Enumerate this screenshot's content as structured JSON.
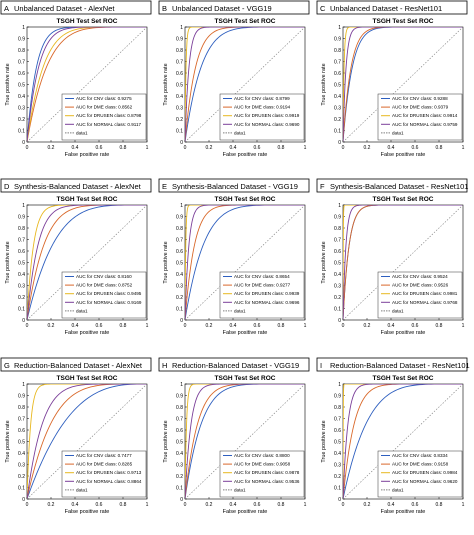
{
  "colors": {
    "CNV": "#2e5fbf",
    "DME": "#d9682a",
    "DRUSEN": "#e8b820",
    "NORMAL": "#7b3f99",
    "data1": "#7f7f7f"
  },
  "chart_data": [
    {
      "type": "line",
      "letter": "A",
      "panel_title": "Unbalanced Dataset - AlexNet",
      "title": "TSGH Test Set ROC",
      "xlabel": "False positive rate",
      "ylabel": "True positive rate",
      "xlim": [
        0,
        1
      ],
      "ylim": [
        0,
        1
      ],
      "xticks": [
        "0",
        "0.2",
        "0.4",
        "0.6",
        "0.8",
        "1"
      ],
      "yticks": [
        "0",
        "0.1",
        "0.2",
        "0.3",
        "0.4",
        "0.5",
        "0.6",
        "0.7",
        "0.8",
        "0.9",
        "1"
      ],
      "legend_position": "bottom-right",
      "series": [
        {
          "key": "CNV",
          "name": "AUC for CNV class: 0.9275",
          "auc": 0.9275
        },
        {
          "key": "DME",
          "name": "AUC for DME class: 0.8562",
          "auc": 0.8562
        },
        {
          "key": "DRUSEN",
          "name": "AUC for DRUSEN class: 0.8798",
          "auc": 0.8798
        },
        {
          "key": "NORMAL",
          "name": "AUC for NORMAL class: 0.9117",
          "auc": 0.9117
        },
        {
          "key": "data1",
          "name": "data1",
          "diagonal": true
        }
      ]
    },
    {
      "type": "line",
      "letter": "B",
      "panel_title": "Unbalanced Dataset - VGG19",
      "title": "TSGH Test Set ROC",
      "xlabel": "False positive rate",
      "ylabel": "True positive rate",
      "xlim": [
        0,
        1
      ],
      "ylim": [
        0,
        1
      ],
      "xticks": [
        "0",
        "0.2",
        "0.4",
        "0.6",
        "0.8",
        "1"
      ],
      "yticks": [
        "0",
        "0.1",
        "0.2",
        "0.3",
        "0.4",
        "0.5",
        "0.6",
        "0.7",
        "0.8",
        "0.9",
        "1"
      ],
      "legend_position": "bottom-right",
      "series": [
        {
          "key": "CNV",
          "name": "AUC for CNV class: 0.8799",
          "auc": 0.8799
        },
        {
          "key": "DME",
          "name": "AUC for DME class: 0.9194",
          "auc": 0.9194
        },
        {
          "key": "DRUSEN",
          "name": "AUC for DRUSEN class: 0.9919",
          "auc": 0.9919
        },
        {
          "key": "NORMAL",
          "name": "AUC for NORMAL class: 0.9690",
          "auc": 0.969
        },
        {
          "key": "data1",
          "name": "data1",
          "diagonal": true
        }
      ]
    },
    {
      "type": "line",
      "letter": "C",
      "panel_title": "Unbalanced Dataset - ResNet101",
      "title": "TSGH Test Set ROC",
      "xlabel": "False positive rate",
      "ylabel": "True positive rate",
      "xlim": [
        0,
        1
      ],
      "ylim": [
        0,
        1
      ],
      "xticks": [
        "0",
        "0.2",
        "0.4",
        "0.6",
        "0.8",
        "1"
      ],
      "yticks": [
        "0",
        "0.1",
        "0.2",
        "0.3",
        "0.4",
        "0.5",
        "0.6",
        "0.7",
        "0.8",
        "0.9",
        "1"
      ],
      "legend_position": "bottom-right",
      "series": [
        {
          "key": "CNV",
          "name": "AUC for CNV class: 0.9288",
          "auc": 0.9288
        },
        {
          "key": "DME",
          "name": "AUC for DME class: 0.9379",
          "auc": 0.9379
        },
        {
          "key": "DRUSEN",
          "name": "AUC for DRUSEN class: 0.9914",
          "auc": 0.9914
        },
        {
          "key": "NORMAL",
          "name": "AUC for NORMAL class: 0.9759",
          "auc": 0.9759
        },
        {
          "key": "data1",
          "name": "data1",
          "diagonal": true
        }
      ]
    },
    {
      "type": "line",
      "letter": "D",
      "panel_title": "Synthesis-Balanced Dataset - AlexNet",
      "title": "TSGH Test Set ROC",
      "xlabel": "False positive rate",
      "ylabel": "True positive rate",
      "xlim": [
        0,
        1
      ],
      "ylim": [
        0,
        1
      ],
      "xticks": [
        "0",
        "0.2",
        "0.4",
        "0.6",
        "0.8",
        "1"
      ],
      "yticks": [
        "0",
        "0.1",
        "0.2",
        "0.3",
        "0.4",
        "0.5",
        "0.6",
        "0.7",
        "0.8",
        "0.9",
        "1"
      ],
      "legend_position": "bottom-right",
      "series": [
        {
          "key": "CNV",
          "name": "AUC for CNV class: 0.8160",
          "auc": 0.816
        },
        {
          "key": "DME",
          "name": "AUC for DME class: 0.8752",
          "auc": 0.8752
        },
        {
          "key": "DRUSEN",
          "name": "AUC for DRUSEN class: 0.9495",
          "auc": 0.9495
        },
        {
          "key": "NORMAL",
          "name": "AUC for NORMAL class: 0.9169",
          "auc": 0.9169
        },
        {
          "key": "data1",
          "name": "data1",
          "diagonal": true
        }
      ]
    },
    {
      "type": "line",
      "letter": "E",
      "panel_title": "Synthesis-Balanced Dataset - VGG19",
      "title": "TSGH Test Set ROC",
      "xlabel": "False positive rate",
      "ylabel": "True positive rate",
      "xlim": [
        0,
        1
      ],
      "ylim": [
        0,
        1
      ],
      "xticks": [
        "0",
        "0.2",
        "0.4",
        "0.6",
        "0.8",
        "1"
      ],
      "yticks": [
        "0",
        "0.1",
        "0.2",
        "0.3",
        "0.4",
        "0.5",
        "0.6",
        "0.7",
        "0.8",
        "0.9",
        "1"
      ],
      "legend_position": "bottom-right",
      "series": [
        {
          "key": "CNV",
          "name": "AUC for CNV class: 0.8654",
          "auc": 0.8654
        },
        {
          "key": "DME",
          "name": "AUC for DME class: 0.9277",
          "auc": 0.9277
        },
        {
          "key": "DRUSEN",
          "name": "AUC for DRUSEN class: 0.9939",
          "auc": 0.9939
        },
        {
          "key": "NORMAL",
          "name": "AUC for NORMAL class: 0.9696",
          "auc": 0.9696
        },
        {
          "key": "data1",
          "name": "data1",
          "diagonal": true
        }
      ]
    },
    {
      "type": "line",
      "letter": "F",
      "panel_title": "Synthesis-Balanced Dataset - ResNet101",
      "title": "TSGH Test Set ROC",
      "xlabel": "False positive rate",
      "ylabel": "True positive rate",
      "xlim": [
        0,
        1
      ],
      "ylim": [
        0,
        1
      ],
      "xticks": [
        "0",
        "0.2",
        "0.4",
        "0.6",
        "0.8",
        "1"
      ],
      "yticks": [
        "0",
        "0.1",
        "0.2",
        "0.3",
        "0.4",
        "0.5",
        "0.6",
        "0.7",
        "0.8",
        "0.9",
        "1"
      ],
      "legend_position": "bottom-right",
      "series": [
        {
          "key": "CNV",
          "name": "AUC for CNV class: 0.9524",
          "auc": 0.9524
        },
        {
          "key": "DME",
          "name": "AUC for DME class: 0.9526",
          "auc": 0.9526
        },
        {
          "key": "DRUSEN",
          "name": "AUC for DRUSEN class: 0.9981",
          "auc": 0.9981
        },
        {
          "key": "NORMAL",
          "name": "AUC for NORMAL class: 0.9768",
          "auc": 0.9768
        },
        {
          "key": "data1",
          "name": "data1",
          "diagonal": true
        }
      ]
    },
    {
      "type": "line",
      "letter": "G",
      "panel_title": "Reduction-Balanced Dataset - AlexNet",
      "title": "TSGH Test Set ROC",
      "xlabel": "False positive rate",
      "ylabel": "True positive rate",
      "xlim": [
        0,
        1
      ],
      "ylim": [
        0,
        1
      ],
      "xticks": [
        "0",
        "0.2",
        "0.4",
        "0.6",
        "0.8",
        "1"
      ],
      "yticks": [
        "0",
        "0.1",
        "0.2",
        "0.3",
        "0.4",
        "0.5",
        "0.6",
        "0.7",
        "0.8",
        "0.9",
        "1"
      ],
      "legend_position": "bottom-right",
      "series": [
        {
          "key": "CNV",
          "name": "AUC for CNV class: 0.7477",
          "auc": 0.7477
        },
        {
          "key": "DME",
          "name": "AUC for DME class: 0.8285",
          "auc": 0.8285
        },
        {
          "key": "DRUSEN",
          "name": "AUC for DRUSEN class: 0.9713",
          "auc": 0.9713
        },
        {
          "key": "NORMAL",
          "name": "AUC for NORMAL class: 0.8864",
          "auc": 0.8864
        },
        {
          "key": "data1",
          "name": "data1",
          "diagonal": true
        }
      ]
    },
    {
      "type": "line",
      "letter": "H",
      "panel_title": "Reduction-Balanced Dataset - VGG19",
      "title": "TSGH Test Set ROC",
      "xlabel": "False positive rate",
      "ylabel": "True positive rate",
      "xlim": [
        0,
        1
      ],
      "ylim": [
        0,
        1
      ],
      "xticks": [
        "0",
        "0.2",
        "0.4",
        "0.6",
        "0.8",
        "1"
      ],
      "yticks": [
        "0",
        "0.1",
        "0.2",
        "0.3",
        "0.4",
        "0.5",
        "0.6",
        "0.7",
        "0.8",
        "0.9",
        "1"
      ],
      "legend_position": "bottom-right",
      "series": [
        {
          "key": "CNV",
          "name": "AUC for CNV class: 0.8800",
          "auc": 0.88
        },
        {
          "key": "DME",
          "name": "AUC for DME class: 0.9058",
          "auc": 0.9058
        },
        {
          "key": "DRUSEN",
          "name": "AUC for DRUSEN class: 0.9878",
          "auc": 0.9878
        },
        {
          "key": "NORMAL",
          "name": "AUC for NORMAL class: 0.9536",
          "auc": 0.9536
        },
        {
          "key": "data1",
          "name": "data1",
          "diagonal": true
        }
      ]
    },
    {
      "type": "line",
      "letter": "I",
      "panel_title": "Reduction-Balanced Dataset - ResNet101",
      "title": "TSGH Test Set ROC",
      "xlabel": "False positive rate",
      "ylabel": "True positive rate",
      "xlim": [
        0,
        1
      ],
      "ylim": [
        0,
        1
      ],
      "xticks": [
        "0",
        "0.2",
        "0.4",
        "0.6",
        "0.8",
        "1"
      ],
      "yticks": [
        "0",
        "0.1",
        "0.2",
        "0.3",
        "0.4",
        "0.5",
        "0.6",
        "0.7",
        "0.8",
        "0.9",
        "1"
      ],
      "legend_position": "bottom-right",
      "series": [
        {
          "key": "CNV",
          "name": "AUC for CNV class: 0.8334",
          "auc": 0.8334
        },
        {
          "key": "DME",
          "name": "AUC for DME class: 0.9158",
          "auc": 0.9158
        },
        {
          "key": "DRUSEN",
          "name": "AUC for DRUSEN class: 0.9984",
          "auc": 0.9984
        },
        {
          "key": "NORMAL",
          "name": "AUC for NORMAL class: 0.9620",
          "auc": 0.962
        },
        {
          "key": "data1",
          "name": "data1",
          "diagonal": true
        }
      ]
    }
  ]
}
